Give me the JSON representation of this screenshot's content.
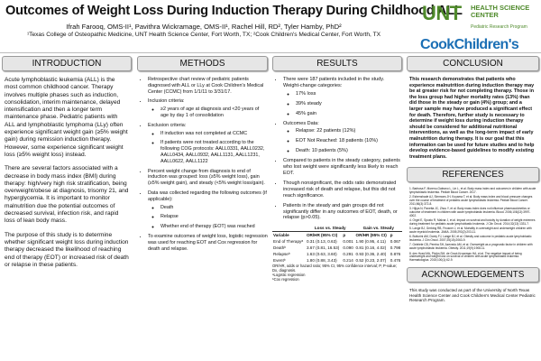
{
  "header": {
    "title": "Outcomes of Weight Loss During Induction Therapy During Childhood ALL",
    "authors": "Ifrah Farooq, OMS-II¹, Pavithra Wickramage, OMS-II¹, Rachel Hill, RD², Tyler Hamby, PhD²",
    "affiliations": "¹Texas College of Osteopathic Medicine, UNT Health Science Center, Fort Worth, TX; ²Cook Children's Medical Center, Fort Worth, TX"
  },
  "logos": {
    "unt": "UNT",
    "unt_sub": "HEALTH SCIENCE CENTER",
    "program": "Pediatric Research Program",
    "cook": "CookChildren's"
  },
  "introduction": {
    "heading": "INTRODUCTION",
    "paragraphs": [
      "Acute lymphoblastic leukemia (ALL) is the most common childhood cancer. Therapy involves multiple phases such as induction, consolidation, interim maintenance, delayed intensification and then a longer term maintenance phase. Pediatric patients with ALL and lymphoblastic lymphoma (LLy) often experience significant weight gain (≥5% weight gain) during remission induction therapy. However, some experience significant weight loss (≥5% weight loss) instead.",
      "There are several factors associated with a decrease in body mass index (BMI) during therapy: high/very high risk stratification, being overweight/obese at diagnosis, trisomy 21, and hyperglycemia. It is important to monitor malnutrition due the potential outcomes of decreased survival, infection risk, and rapid loss of lean body mass.",
      "The purpose of this study is to determine whether significant weight loss during induction therapy decreased the likelihood of reaching end of therapy (EOT) or increased risk of death or relapse in these patients."
    ]
  },
  "methods": {
    "heading": "METHODS",
    "items": [
      {
        "text": "Retrospective chart review of pediatric patients diagnosed with ALL or LLy at Cook Children's Medical Center (CCMC) from 1/1/11 to 3/31/17."
      },
      {
        "text": "Inclusion criteria:",
        "sub": [
          "≥2 years of age at diagnosis and <20 years of age by day 1 of consolidation"
        ]
      },
      {
        "text": "Exclusion criteria:",
        "sub": [
          "If induction was not completed at CCMC",
          "If patients were not treated according to the following COG protocols: AALL0331, AALL0232, AALL0434, AALL0932, AALL1131, AALL1231, AALL0622, AALL1122"
        ]
      },
      {
        "text": "Percent weight change from diagnosis to end of induction was grouped: loss (≥5% weight loss), gain (≥5% weight gain), and steady (<5% weight loss/gain)."
      },
      {
        "text": "Data was collected regarding the following outcomes (if applicable):",
        "sub": [
          "Death",
          "Relapse",
          "Whether end of therapy (EOT) was reached"
        ]
      },
      {
        "text": "To examine outcomes of weight loss, logistic regression was used for reaching EOT and Cox regression for death and relapse."
      }
    ]
  },
  "results": {
    "heading": "RESULTS",
    "items": [
      {
        "text": "There were 187 patients included in the study. Weight-change categories:",
        "sub": [
          "17% loss",
          "39% steady",
          "45% gain"
        ]
      },
      {
        "text": "Outcomes Data:",
        "sub": [
          "Relapse: 22 patients (12%)",
          "EOT Not Reached: 18 patients (10%)",
          "Death: 10 patients (5%)"
        ]
      },
      {
        "text": "Compared to patients in the steady category, patients who lost weight were significantly less likely to reach EOT."
      },
      {
        "text": "Though nonsignificant, the odds ratio demonstrated increased risk of death and relapse, but this did not reach significance."
      },
      {
        "text": "Patients in the steady and gain groups did not significantly differ in any outcomes of EOT, death, or relapse (p>0.05)."
      }
    ],
    "table": {
      "group_headers": [
        "Loss vs. Steady",
        "Gain vs. Steady"
      ],
      "columns": [
        "Variable",
        "OR/HR (95% CI)",
        "p",
        "OR/HR (95% CI)",
        "p"
      ],
      "rows": [
        [
          "End of Therapyᵃ",
          "0.31 (0.13, 0.63)",
          "0.001",
          "1.90 (0.95, 4.11)",
          "0.067"
        ],
        [
          "Deathᵇ",
          "3.67 (0.81, 16.53)",
          "0.090",
          "0.81 (0.16, 4.02)",
          "0.798"
        ],
        [
          "Relapseᵇ",
          "1.63 (0.63, 3.60)",
          "0.291",
          "0.93 (0.36, 2.40)",
          "0.876"
        ],
        [
          "Eventᵇ",
          "1.80 (0.88, 3.43)",
          "0.214",
          "0.52 (0.23, 2.07)",
          "0.476"
        ]
      ],
      "notes": [
        "OR/HR, odds or hazard ratio; 95% CI, 95% confidence interval; P, P-value; Dx, diagnosis.",
        "ᵃLogistic regression",
        "ᵇCox regression"
      ]
    }
  },
  "conclusion": {
    "heading": "CONCLUSION",
    "text": "This research demonstrates that patients who experience malnutrition during induction therapy may be at greater risk for not completing therapy. Those in the loss group had higher mortality rates (13%) than did those in the steady or gain (4%) group; and a larger sample may have produced a significant effect for death. Therefore, further study is necessary to determine if weight loss during induction therapy should be considered for additional nutritional interventions, as well as the long-term impact of early malnutrition during therapy. It is our goal that this information can be used for future studies and to help develop evidence-based guidelines to modify existing treatment plans."
  },
  "references": {
    "heading": "REFERENCES",
    "items": [
      "1. Barbosa F, Moreno-Galeano L, Lin L, et al. Body mass index and outcomes in children with acute lymphoblastic leukemia. Pediatr Blood Cancer. 2017.",
      "2. Esbenshade AJ, Simmons JH, Koyama T, et al. Body mass index and blood pressure changes over the course of treatment of pediatric acute lymphoblastic leukemia. Pediatr Blood Cancer. 2011;56(3):372-8.",
      "3. Hijiya N, Panetta JC, Zhou Y, et al. Body mass index does not influence pharmacokinetics or outcome of treatment in children with acute lymphoblastic leukemia. Blood. 2006;108(13):3997-4002.",
      "4. Orgel E, Sposto R, Malvar J, et al. Impact on survival and toxicity by duration of weight extremes during treatment for pediatric acute lymphoblastic leukemia. J Clin Oncol. 2014;32(13):1331-7.",
      "5. Lange BJ, Gerbing RB, Feusner J, et al. Mortality in overweight and underweight children with acute myeloid leukemia. JAMA. 2005;293(2):203-11.",
      "6. Butturini AM, Dorey FJ, Lange BJ, et al. Obesity and outcome in pediatric acute lymphoblastic leukemia. J Clin Oncol. 2007;25(15):2063-9.",
      "7. Gelelete CB, Pereira SH, Azevedo AM, et al. Overweight as a prognostic factor in children with acute lymphoblastic leukemia. Obesity. 2011;19(9):1908-11.",
      "8. den Hoed MA, Pluijm SM, de Groot-Kruseman HA, et al. The negative impact of being underweight and weight loss on survival of children with acute lymphoblastic leukemia. Haematologica. 2015;100(1):62-9."
    ]
  },
  "acknowledgements": {
    "heading": "ACKNOWLEDGEMENTS",
    "text": "This study was conducted as part of the University of North Texas Health Science Center and Cook Children's Medical Center Pediatric Research Program."
  }
}
